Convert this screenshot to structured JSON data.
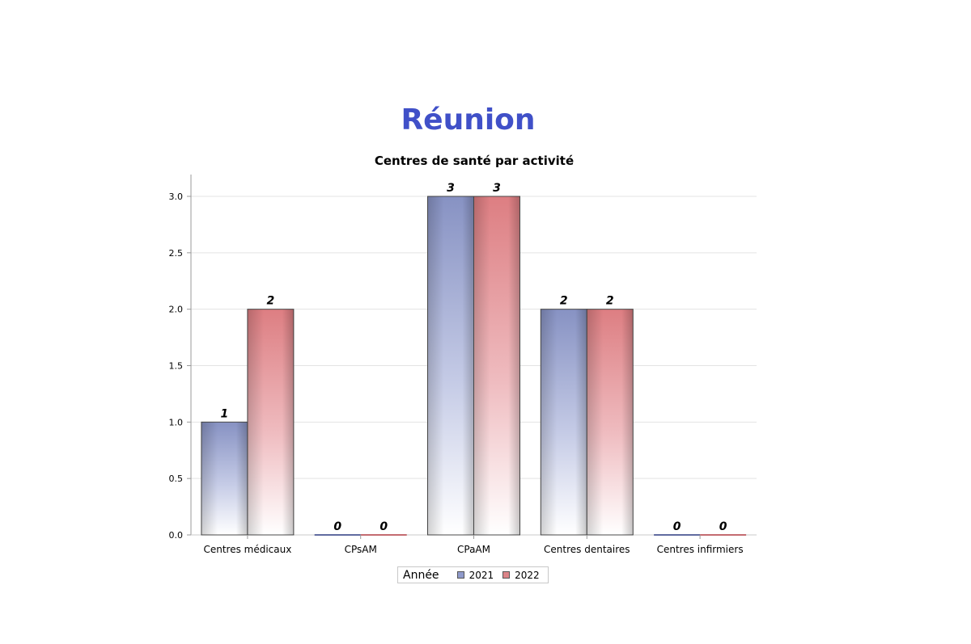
{
  "page": {
    "title": "Réunion"
  },
  "chart_data": {
    "type": "bar",
    "title": "Centres de santé par activité",
    "xlabel": "",
    "ylabel": "",
    "ylim": [
      0,
      3.2
    ],
    "yticks": [
      "0.0",
      "0.5",
      "1.0",
      "1.5",
      "2.0",
      "2.5",
      "3.0"
    ],
    "categories": [
      "Centres médicaux",
      "CPsAM",
      "CPaAM",
      "Centres dentaires",
      "Centres infirmiers"
    ],
    "series": [
      {
        "name": "2021",
        "values": [
          1,
          0,
          3,
          2,
          0
        ],
        "labels": [
          "1",
          "0",
          "3",
          "2",
          "0"
        ],
        "color": "#7f8dc0"
      },
      {
        "name": "2022",
        "values": [
          2,
          0,
          3,
          2,
          0
        ],
        "labels": [
          "2",
          "0",
          "3",
          "2",
          "0"
        ],
        "color": "#d97d80"
      }
    ],
    "grid": true,
    "legend": {
      "title": "Année",
      "position": "bottom-center"
    }
  }
}
